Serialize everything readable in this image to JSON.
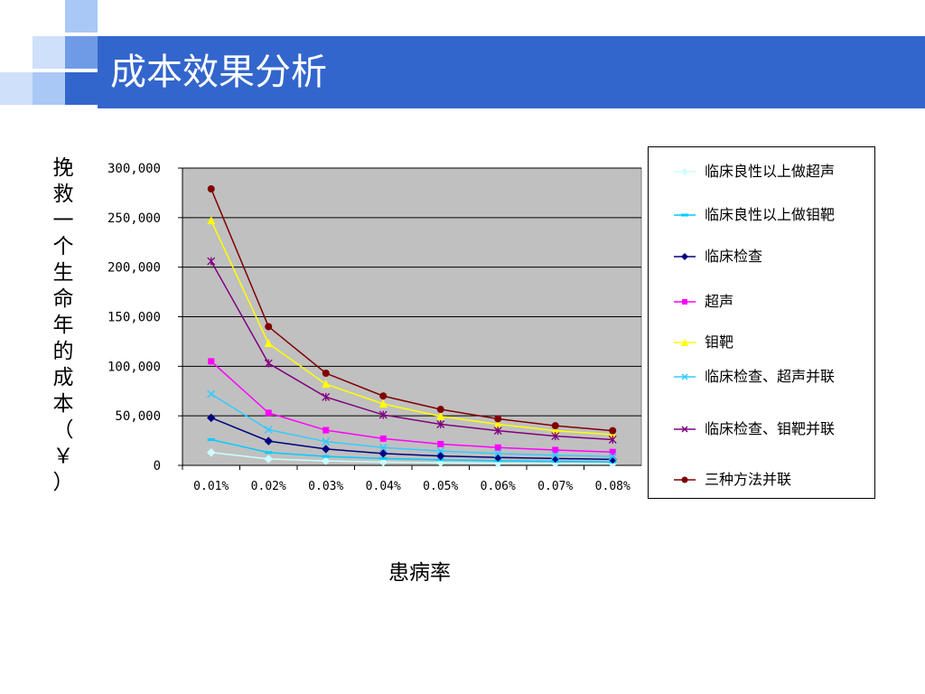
{
  "page": {
    "title": "成本效果分析"
  },
  "decor": {
    "bar_color": "#3366cc",
    "square_colors": [
      "#a9c8f5",
      "#6f9be6",
      "#cfe0fb"
    ]
  },
  "chart_data": {
    "type": "line",
    "title": "",
    "ylabel": "挽救一个生命年的成本（￥）",
    "xlabel": "患病率",
    "categories": [
      "0.01%",
      "0.02%",
      "0.03%",
      "0.04%",
      "0.05%",
      "0.06%",
      "0.07%",
      "0.08%"
    ],
    "ylim": [
      0,
      300000
    ],
    "yticks": [
      0,
      50000,
      100000,
      150000,
      200000,
      250000,
      300000
    ],
    "ytick_labels": [
      "0",
      "50,000",
      "100,000",
      "150,000",
      "200,000",
      "250,000",
      "300,000"
    ],
    "grid": true,
    "plot_background": "#c0c0c0",
    "legend_position": "right",
    "series": [
      {
        "name": "临床良性以上做超声",
        "color": "#ccffff",
        "marker": "diamond",
        "values": [
          13000,
          6500,
          4500,
          3300,
          2700,
          2200,
          1900,
          1600
        ]
      },
      {
        "name": "临床良性以上做钼靶",
        "color": "#00ccff",
        "marker": "dash",
        "values": [
          26000,
          13000,
          9000,
          7000,
          5600,
          4700,
          4000,
          3500
        ]
      },
      {
        "name": "临床检查",
        "color": "#000080",
        "marker": "diamond",
        "values": [
          48000,
          24500,
          16500,
          12000,
          9500,
          8000,
          7000,
          6000
        ]
      },
      {
        "name": "超声",
        "color": "#ff00ff",
        "marker": "square",
        "values": [
          105000,
          53000,
          35500,
          27000,
          21500,
          18000,
          15500,
          13500
        ]
      },
      {
        "name": "钼靶",
        "color": "#ffff00",
        "marker": "triangle",
        "values": [
          247000,
          123000,
          82000,
          62000,
          49500,
          41500,
          35000,
          31000
        ]
      },
      {
        "name": "临床检查、超声并联",
        "color": "#33ccff",
        "marker": "x",
        "values": [
          72000,
          36000,
          24000,
          18000,
          14500,
          12000,
          10300,
          9000
        ]
      },
      {
        "name": "临床检查、钼靶并联",
        "color": "#800080",
        "marker": "star",
        "values": [
          206000,
          103000,
          69000,
          51000,
          41500,
          35000,
          29500,
          26000
        ]
      },
      {
        "name": "三种方法并联",
        "color": "#800000",
        "marker": "circle",
        "values": [
          279000,
          140000,
          93000,
          70000,
          56500,
          47000,
          40000,
          35000
        ]
      }
    ]
  }
}
